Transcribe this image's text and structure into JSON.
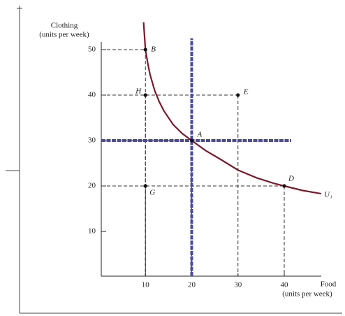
{
  "chart_data": {
    "type": "line",
    "y_label": [
      "Clothing",
      "(units per week)"
    ],
    "x_label": [
      "Food",
      "(units per week)"
    ],
    "xlim": [
      0,
      48
    ],
    "ylim": [
      0,
      56
    ],
    "xticks": [
      10,
      20,
      30,
      40
    ],
    "yticks": [
      10,
      20,
      30,
      40,
      50
    ],
    "series": [
      {
        "name": "U₁",
        "color": "#7a1a2e",
        "x": [
          9.6,
          10,
          10.5,
          11,
          12,
          13,
          14,
          16,
          18,
          20,
          23,
          26,
          30,
          34,
          38,
          40,
          44,
          48
        ],
        "values": [
          56,
          50,
          47,
          44.5,
          41,
          38.5,
          36.5,
          33.5,
          31.5,
          30,
          27.8,
          26,
          23.5,
          21.8,
          20.5,
          20,
          19,
          18.3
        ]
      }
    ],
    "points": [
      {
        "label": "B",
        "x": 10,
        "y": 50
      },
      {
        "label": "H",
        "x": 10,
        "y": 40
      },
      {
        "label": "E",
        "x": 30,
        "y": 40
      },
      {
        "label": "A",
        "x": 20,
        "y": 30
      },
      {
        "label": "D",
        "x": 40,
        "y": 20
      },
      {
        "label": "G",
        "x": 10,
        "y": 20
      }
    ],
    "guides": {
      "color": "#4a4a9c",
      "vertical": {
        "x": 20,
        "y_end": 52.5
      },
      "horizontal": {
        "y": 30,
        "x_end": 41.5
      }
    }
  }
}
